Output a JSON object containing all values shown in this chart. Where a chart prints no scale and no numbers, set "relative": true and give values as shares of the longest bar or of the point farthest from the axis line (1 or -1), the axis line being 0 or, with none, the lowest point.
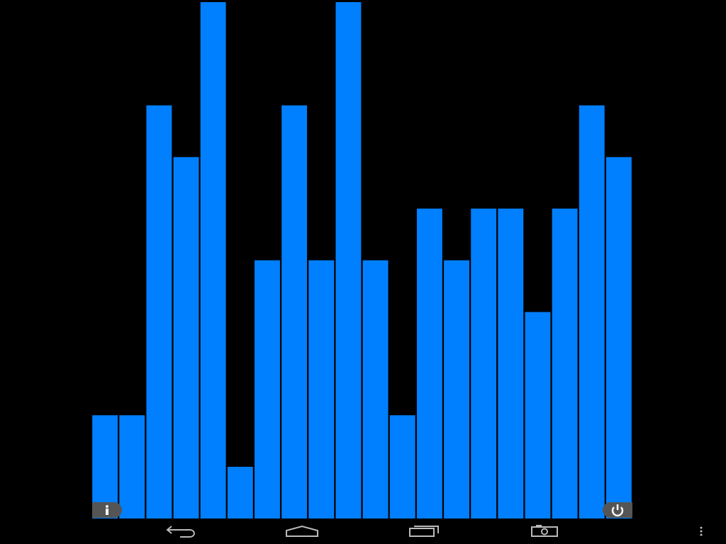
{
  "chart_data": {
    "type": "bar",
    "relative": true,
    "categories": [
      null,
      null,
      null,
      null,
      null,
      null,
      null,
      null,
      null,
      null,
      null,
      null,
      null,
      null,
      null,
      null,
      null,
      null,
      null,
      null
    ],
    "values": [
      0.2,
      0.2,
      0.8,
      0.7,
      1,
      0.1,
      0.5,
      0.8,
      0.5,
      1,
      0.5,
      0.2,
      0.6,
      0.5,
      0.6,
      0.6,
      0.4,
      0.6,
      0.8,
      0.7
    ],
    "color": "#0080ff",
    "legend": false
  }
}
